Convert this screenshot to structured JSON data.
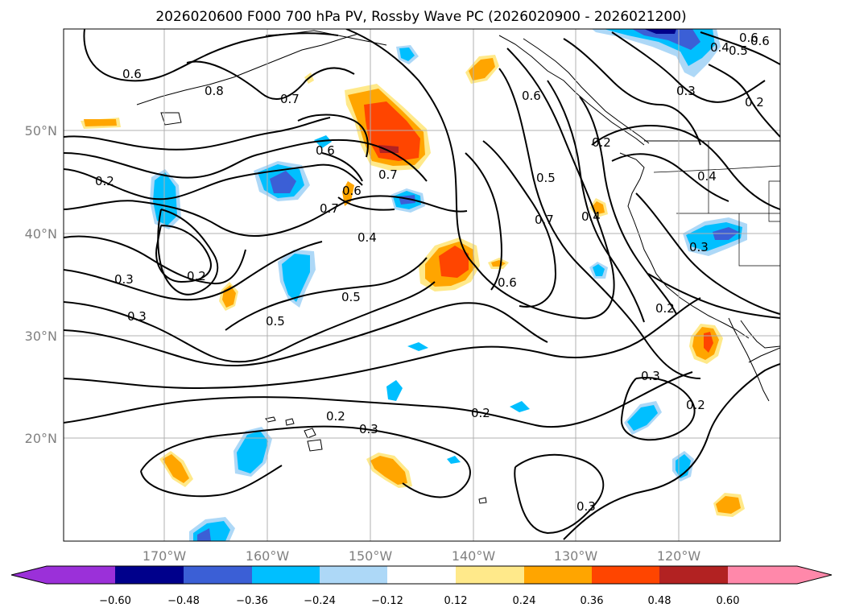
{
  "title": "2026020600 F000 700 hPa PV, Rossby Wave PC (2026020900 - 2026021200)",
  "lat_labels": [
    "50°N",
    "40°N",
    "30°N",
    "20°N"
  ],
  "lon_labels": [
    "170°W",
    "160°W",
    "150°W",
    "140°W",
    "130°W",
    "120°W"
  ],
  "colorbar": {
    "ticks": [
      "−0.60",
      "−0.48",
      "−0.36",
      "−0.24",
      "−0.12",
      "0.12",
      "0.24",
      "0.36",
      "0.48",
      "0.60"
    ],
    "colors": [
      "#9b30d9",
      "#00008b",
      "#3b5fd6",
      "#00bfff",
      "#add8f7",
      "#ffffff",
      "#ffe98a",
      "#ffa500",
      "#ff4500",
      "#b22222",
      "#ff88aa"
    ]
  },
  "contour_labels": [
    "0.6",
    "0.8",
    "0.7",
    "0.6",
    "0.7",
    "0.6",
    "0.2",
    "0.2",
    "0.6",
    "0.7",
    "0.6",
    "0.4",
    "0.3",
    "0.2",
    "0.3",
    "0.5",
    "0.5",
    "0.7",
    "0.5",
    "0.4",
    "0.6",
    "0.2",
    "0.3",
    "0.2",
    "0.3",
    "0.2",
    "0.2",
    "0.3",
    "0.4",
    "0.3",
    "0.5",
    "0.6",
    "0.4",
    "0.2",
    "0.3"
  ],
  "map_colors": {
    "neg_light": "#add8f7",
    "neg_mid": "#00bfff",
    "neg_strong": "#3b5fd6",
    "pos_light": "#ffe98a",
    "pos_mid": "#ffa500",
    "pos_strong": "#ff4500",
    "pos_max": "#b22222"
  }
}
